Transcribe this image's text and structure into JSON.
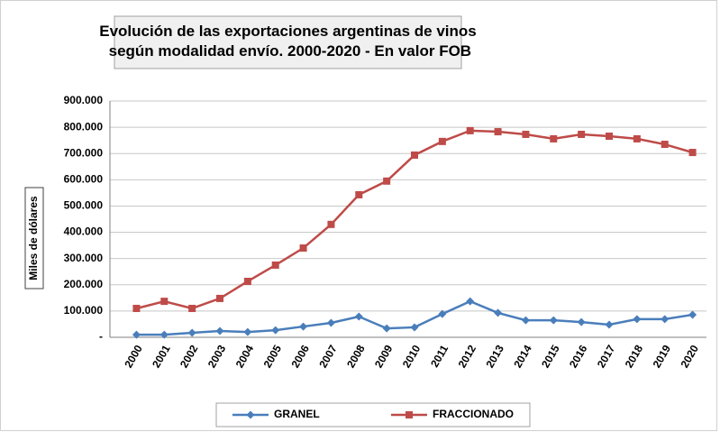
{
  "chart_data": {
    "type": "line",
    "title": "Evolución de las exportaciones argentinas de vinos según modalidad envío. 2000-2020 - En valor FOB",
    "y_label": "Miles de dólares",
    "categories": [
      "2000",
      "2001",
      "2002",
      "2003",
      "2004",
      "2005",
      "2006",
      "2007",
      "2008",
      "2009",
      "2010",
      "2011",
      "2012",
      "2013",
      "2014",
      "2015",
      "2016",
      "2017",
      "2018",
      "2019",
      "2020"
    ],
    "series": [
      {
        "name": "GRANEL",
        "color": "#4a7ebb",
        "marker": "diamond",
        "values": [
          10000,
          10000,
          17000,
          24000,
          20000,
          27000,
          41000,
          55000,
          79000,
          34000,
          38000,
          89000,
          137000,
          93000,
          65000,
          65000,
          58000,
          48000,
          69000,
          69000,
          86000
        ]
      },
      {
        "name": "FRACCIONADO",
        "color": "#be4b48",
        "marker": "square",
        "values": [
          110000,
          137000,
          110000,
          148000,
          213000,
          275000,
          340000,
          430000,
          543000,
          595000,
          694000,
          746000,
          787000,
          783000,
          773000,
          756000,
          773000,
          766000,
          756000,
          735000,
          704000
        ]
      }
    ],
    "ylim": [
      0,
      900000
    ],
    "yticks": [
      {
        "value": 0,
        "label": "-"
      },
      {
        "value": 100000,
        "label": "100.000"
      },
      {
        "value": 200000,
        "label": "200.000"
      },
      {
        "value": 300000,
        "label": "300.000"
      },
      {
        "value": 400000,
        "label": "400.000"
      },
      {
        "value": 500000,
        "label": "500.000"
      },
      {
        "value": 600000,
        "label": "600.000"
      },
      {
        "value": 700000,
        "label": "700.000"
      },
      {
        "value": 800000,
        "label": "800.000"
      },
      {
        "value": 900000,
        "label": "900.000"
      }
    ],
    "grid": true
  }
}
